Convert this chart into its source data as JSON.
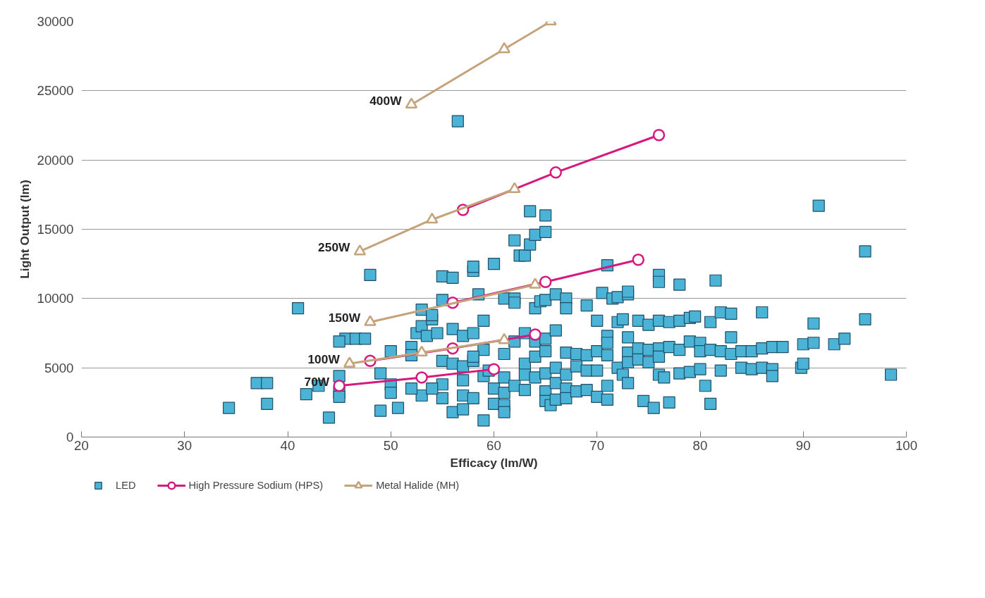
{
  "chart_data": {
    "type": "scatter",
    "xlabel": "Efficacy (lm/W)",
    "ylabel": "Light Output (lm)",
    "xlim": [
      20,
      100
    ],
    "xticks": [
      20,
      30,
      40,
      50,
      60,
      70,
      80,
      90,
      100
    ],
    "ylim": [
      0,
      30000
    ],
    "yticks": [
      0,
      5000,
      10000,
      15000,
      20000,
      25000,
      30000
    ],
    "grid": "y",
    "legend": "bottom",
    "series": [
      {
        "name": "LED",
        "marker": "square",
        "color": "#4bb3d6",
        "x": [
          34.3,
          37,
          38,
          38,
          41,
          41.8,
          43,
          44,
          45,
          45,
          45,
          45.6,
          46.6,
          47.5,
          45,
          48,
          49,
          49,
          50,
          50,
          50,
          50.7,
          52,
          52,
          52.5,
          53,
          53,
          53.5,
          54,
          54,
          54.5,
          55,
          55,
          55,
          55,
          55,
          53,
          52,
          54,
          56,
          null,
          56,
          56,
          56,
          56.5,
          57,
          57,
          57,
          57,
          57,
          58,
          58,
          58,
          58,
          58,
          58.5,
          59,
          59,
          59,
          59,
          60,
          null,
          60,
          60,
          61,
          61,
          61,
          61,
          61,
          61,
          62,
          62,
          62,
          62,
          62,
          62.5,
          63,
          63,
          63,
          63,
          63,
          63.5,
          63.5,
          64,
          64,
          64,
          64,
          64,
          64.5,
          65,
          65,
          65,
          65,
          65,
          65,
          65,
          65,
          65.5,
          66,
          66,
          66,
          66,
          66,
          67,
          67,
          67,
          67,
          67,
          67,
          68,
          68,
          68,
          69,
          69,
          69,
          69,
          70,
          70,
          70,
          70,
          70.5,
          71,
          71,
          71,
          71,
          71,
          71,
          71.5,
          72,
          72,
          72,
          72.5,
          72.5,
          73,
          73,
          73,
          73,
          73,
          73,
          74,
          74,
          74,
          75,
          75,
          74.5,
          75,
          75.5,
          76,
          76,
          76,
          76,
          76,
          76,
          76.5,
          77,
          77,
          77,
          78,
          78,
          78,
          78,
          79,
          79,
          79,
          79.5,
          80,
          80,
          80,
          80.5,
          81,
          81,
          81,
          81.5,
          82,
          82,
          82,
          83,
          83,
          83,
          84,
          84,
          85,
          85,
          86,
          86,
          86,
          87,
          87,
          87,
          88,
          89.8,
          90,
          90,
          91,
          91,
          91.5,
          93,
          94,
          96,
          96,
          98.5,
          59.5,
          58
        ],
        "values": [
          2100,
          3900,
          3900,
          2400,
          9300,
          3100,
          3700,
          1400,
          4400,
          3200,
          2900,
          7100,
          7100,
          7100,
          6900,
          11700,
          4600,
          1900,
          6200,
          3800,
          3200,
          2100,
          6500,
          5900,
          7500,
          8000,
          9200,
          7300,
          8500,
          8800,
          7500,
          9900,
          11600,
          5500,
          3800,
          2800,
          3000,
          3500,
          3500,
          11500,
          null,
          7800,
          5300,
          1800,
          22800,
          7300,
          5100,
          4100,
          3000,
          2000,
          12000,
          12300,
          7500,
          5500,
          2800,
          10300,
          8400,
          6300,
          4400,
          1200,
          12500,
          null,
          3500,
          2400,
          10000,
          6000,
          4300,
          3200,
          2300,
          1800,
          14200,
          10000,
          9700,
          6900,
          3700,
          13100,
          13100,
          7500,
          5300,
          4500,
          3400,
          13900,
          16300,
          14600,
          9300,
          6900,
          5800,
          4300,
          9800,
          16000,
          14800,
          9900,
          7100,
          6200,
          4600,
          3300,
          2600,
          2300,
          10300,
          7700,
          5000,
          3900,
          2700,
          10000,
          9300,
          6100,
          4500,
          3500,
          2800,
          6000,
          5100,
          3300,
          9500,
          5900,
          4800,
          3400,
          8400,
          6200,
          4800,
          2900,
          10400,
          12400,
          7300,
          6800,
          5900,
          3700,
          2700,
          10000,
          10100,
          8300,
          5000,
          8500,
          4500,
          10300,
          10500,
          7200,
          6100,
          5400,
          3900,
          8400,
          6400,
          5600,
          8100,
          6300,
          2600,
          5400,
          2100,
          11700,
          11200,
          8400,
          6400,
          5800,
          4500,
          4300,
          8300,
          6500,
          2500,
          11000,
          8400,
          6300,
          4600,
          8600,
          6900,
          4700,
          8700,
          6800,
          6200,
          4900,
          3700,
          2400,
          8300,
          6300,
          11300,
          9000,
          6200,
          4800,
          8900,
          7200,
          6000,
          6200,
          5000,
          6200,
          4900,
          9000,
          6400,
          5000,
          6500,
          4900,
          4400,
          6500,
          5000,
          6700,
          5300,
          8200,
          6800,
          16700,
          6700,
          7100,
          13400,
          8500,
          4500,
          4800,
          5800
        ]
      },
      {
        "name": "High Pressure Sodium (HPS)",
        "type": "line",
        "marker": "circle",
        "color": "#d6197f",
        "x": [
          45,
          53,
          60,
          null,
          48,
          56,
          64,
          null,
          56,
          65,
          74,
          null,
          57,
          66,
          76
        ],
        "values": [
          3700,
          4300,
          4900,
          null,
          5500,
          6400,
          7400,
          null,
          9700,
          11200,
          12800,
          null,
          16400,
          19100,
          21800
        ]
      },
      {
        "name": "Metal Halide (MH)",
        "type": "line",
        "marker": "triangle",
        "color": "#c4a27a",
        "x": [
          46,
          53,
          61,
          null,
          48,
          64,
          null,
          47,
          54,
          62,
          null,
          52,
          61,
          65.5
        ],
        "values": [
          5300,
          6100,
          7000,
          null,
          8300,
          11000,
          null,
          13400,
          15700,
          17900,
          null,
          24000,
          28000,
          30000
        ]
      }
    ],
    "annotations": [
      {
        "text": "400W",
        "x": 52,
        "y": 24000
      },
      {
        "text": "250W",
        "x": 47,
        "y": 13400
      },
      {
        "text": "150W",
        "x": 48,
        "y": 8300
      },
      {
        "text": "100W",
        "x": 46,
        "y": 5300
      },
      {
        "text": "70W",
        "x": 45,
        "y": 3700
      }
    ]
  }
}
